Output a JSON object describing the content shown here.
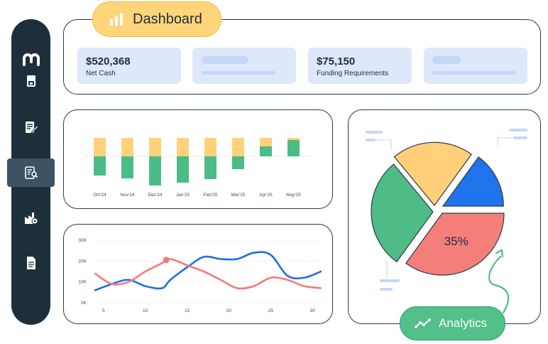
{
  "header": {
    "title": "Dashboard",
    "icon": "bar-chart-icon"
  },
  "sidebar": {
    "items": [
      {
        "icon": "logo-icon"
      },
      {
        "icon": "ledger-icon"
      },
      {
        "icon": "edit-document-icon"
      },
      {
        "icon": "report-search-icon",
        "active": true
      },
      {
        "icon": "industry-icon"
      },
      {
        "icon": "document-icon"
      }
    ]
  },
  "stats": [
    {
      "value": "$520,368",
      "label": "Net Cash"
    },
    {
      "value": "$75,150",
      "label": "Funding Requirements"
    }
  ],
  "bar_chart": {
    "chart_data": {
      "type": "bar",
      "categories": [
        "Oct'24",
        "Nov'24",
        "Dec'24",
        "Jan'25",
        "Feb'25",
        "Mar'25",
        "Apr'25",
        "May'25"
      ],
      "series": [
        {
          "values": [
            26,
            26,
            26,
            26,
            26,
            26,
            26,
            26
          ],
          "color": "#ffd27a"
        },
        {
          "values": [
            -27,
            -31,
            -41,
            -37,
            -32,
            -18,
            14,
            23
          ],
          "color": "#4cbc86"
        }
      ]
    }
  },
  "line_chart": {
    "chart_data": {
      "type": "line",
      "x_ticks": [
        "5",
        "10",
        "15",
        "20",
        "25",
        "30"
      ],
      "y_ticks": [
        "0K",
        "10K",
        "20K",
        "30K"
      ],
      "ylim": [
        0,
        30
      ],
      "xlim": [
        4,
        31
      ],
      "series": [
        {
          "color": "#1f6fe5",
          "x": [
            4,
            6,
            8,
            10,
            12,
            13,
            15,
            17,
            19,
            21,
            23,
            25,
            27,
            29,
            31
          ],
          "y": [
            6,
            9,
            11,
            8,
            7,
            11,
            17,
            22,
            21,
            21,
            24,
            23,
            13,
            12,
            15
          ]
        },
        {
          "color": "#f37a7a",
          "x": [
            4,
            6,
            8,
            10,
            12,
            13,
            15,
            17,
            19,
            21,
            23,
            25,
            27,
            29,
            31
          ],
          "y": [
            14,
            9,
            10,
            15,
            19,
            21,
            18,
            15,
            11,
            7,
            8,
            12,
            11,
            8,
            7
          ]
        }
      ],
      "marker": {
        "series": 1,
        "x": 12.5,
        "y": 20.5
      }
    }
  },
  "pie_chart": {
    "chart_data": {
      "type": "pie",
      "slices": [
        {
          "value": 35,
          "label": "35%",
          "color": "#f47f7a"
        },
        {
          "value": 29,
          "color": "#4fbb86"
        },
        {
          "value": 21,
          "color": "#ffcf7a"
        },
        {
          "value": 15,
          "color": "#1f74ec"
        }
      ]
    }
  },
  "analytics": {
    "label": "Analytics",
    "icon": "trend-line-icon"
  }
}
